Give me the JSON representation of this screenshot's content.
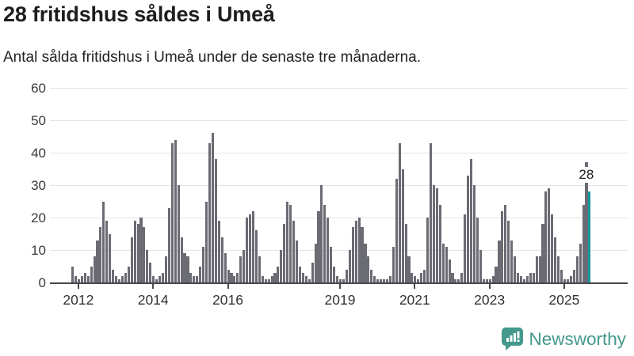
{
  "header": {
    "title": "28 fritidshus såldes i Umeå",
    "subtitle": "Antal sålda fritidshus i Umeå under de senaste tre månaderna."
  },
  "chart_data": {
    "type": "bar",
    "title": "28 fritidshus såldes i Umeå",
    "subtitle": "Antal sålda fritidshus i Umeå under de senaste tre månaderna.",
    "start_month": "2011-11",
    "frequency": "monthly",
    "values": [
      5,
      2,
      1,
      2,
      3,
      2,
      5,
      8,
      13,
      17,
      25,
      19,
      15,
      4,
      2,
      1,
      2,
      3,
      5,
      14,
      19,
      18,
      20,
      17,
      10,
      6,
      2,
      1,
      2,
      3,
      8,
      23,
      43,
      44,
      30,
      14,
      9,
      8,
      3,
      2,
      2,
      5,
      11,
      25,
      43,
      46,
      38,
      19,
      14,
      9,
      4,
      3,
      2,
      3,
      8,
      10,
      20,
      21,
      22,
      16,
      8,
      2,
      1,
      1,
      2,
      3,
      5,
      10,
      18,
      25,
      24,
      19,
      13,
      5,
      3,
      2,
      1,
      6,
      12,
      22,
      30,
      24,
      20,
      11,
      5,
      2,
      1,
      1,
      4,
      10,
      17,
      19,
      20,
      17,
      12,
      8,
      4,
      2,
      1,
      1,
      1,
      1,
      2,
      11,
      32,
      43,
      35,
      18,
      8,
      3,
      2,
      1,
      3,
      4,
      20,
      43,
      30,
      29,
      24,
      12,
      11,
      7,
      3,
      1,
      1,
      3,
      21,
      33,
      38,
      30,
      20,
      10,
      1,
      1,
      1,
      2,
      5,
      13,
      22,
      24,
      19,
      13,
      8,
      3,
      2,
      1,
      2,
      3,
      3,
      8,
      8,
      18,
      28,
      29,
      21,
      14,
      8,
      4,
      1,
      1,
      2,
      4,
      8,
      12,
      24,
      37,
      28
    ],
    "highlight": {
      "index": 166,
      "value": 28,
      "label": "28",
      "color": "#119b9b"
    },
    "bar_color": "#6b6b74",
    "ylim": [
      0,
      60
    ],
    "yticks": [
      0,
      10,
      20,
      30,
      40,
      50,
      60
    ],
    "xticks": [
      {
        "label": "2012",
        "month_index": 2
      },
      {
        "label": "2014",
        "month_index": 26
      },
      {
        "label": "2016",
        "month_index": 50
      },
      {
        "label": "2019",
        "month_index": 86
      },
      {
        "label": "2021",
        "month_index": 110
      },
      {
        "label": "2023",
        "month_index": 134
      },
      {
        "label": "2025",
        "month_index": 158
      }
    ],
    "grid": true,
    "legend": "none"
  },
  "footer": {
    "brand": "Newsworthy",
    "logo_icon": "newsworthy-chart-bubble-icon",
    "brand_color": "#44998c"
  }
}
